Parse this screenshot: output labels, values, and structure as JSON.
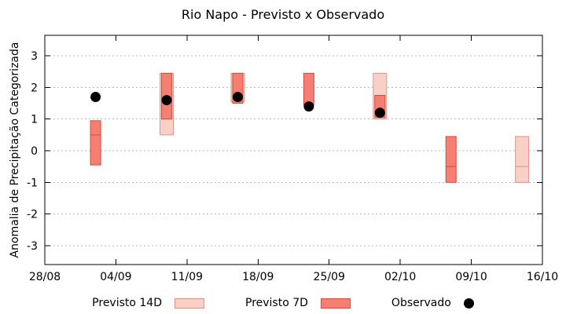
{
  "chart_data": {
    "type": "bar",
    "title": "Rio Napo - Previsto x Observado",
    "ylabel": "Anomalia de Precipitação Categorizada",
    "xlabel": "",
    "ylim": [
      -3,
      3
    ],
    "y_ticks": [
      -3,
      -2,
      -1,
      0,
      1,
      2,
      3
    ],
    "x_ticks": [
      {
        "day": 0,
        "label": "28/08"
      },
      {
        "day": 7,
        "label": "04/09"
      },
      {
        "day": 14,
        "label": "11/09"
      },
      {
        "day": 21,
        "label": "18/09"
      },
      {
        "day": 28,
        "label": "25/09"
      },
      {
        "day": 35,
        "label": "02/10"
      },
      {
        "day": 42,
        "label": "09/10"
      },
      {
        "day": 49,
        "label": "16/10"
      }
    ],
    "grid": "horizontal-dotted",
    "legend_position": "bottom-center",
    "series": [
      {
        "name": "Previsto 14D",
        "type": "range-bar",
        "color": "#f8d0c8",
        "border": "#e09288"
      },
      {
        "name": "Previsto 7D",
        "type": "range-bar",
        "color": "#f47f72",
        "border": "#d44a3c"
      },
      {
        "name": "Observado",
        "type": "scatter",
        "color": "#000000"
      }
    ],
    "points": [
      {
        "date": "02/09",
        "day": 5,
        "previsto_14d": null,
        "previsto_7d": {
          "lo": -0.45,
          "hi": 0.95,
          "div": 0.5
        },
        "observado": 1.7
      },
      {
        "date": "09/09",
        "day": 12,
        "previsto_14d": {
          "lo": 0.5,
          "hi": 2.45
        },
        "previsto_7d": {
          "lo": 1.0,
          "hi": 2.45
        },
        "observado": 1.6
      },
      {
        "date": "16/09",
        "day": 19,
        "previsto_14d": {
          "lo": 1.55,
          "hi": 2.45
        },
        "previsto_7d": {
          "lo": 1.5,
          "hi": 2.45
        },
        "observado": 1.7
      },
      {
        "date": "23/09",
        "day": 26,
        "previsto_14d": null,
        "previsto_7d": {
          "lo": 1.45,
          "hi": 2.45
        },
        "observado": 1.4
      },
      {
        "date": "30/09",
        "day": 33,
        "previsto_14d": {
          "lo": 1.0,
          "hi": 2.45
        },
        "previsto_7d": {
          "lo": 1.05,
          "hi": 1.75
        },
        "observado": 1.2
      },
      {
        "date": "07/10",
        "day": 40,
        "previsto_14d": null,
        "previsto_7d": {
          "lo": -1.0,
          "hi": 0.45,
          "div": -0.5
        },
        "observado": null
      },
      {
        "date": "14/10",
        "day": 47,
        "previsto_14d": {
          "lo": -1.0,
          "hi": 0.45,
          "div": -0.5
        },
        "previsto_7d": null,
        "observado": null
      }
    ],
    "legend": [
      {
        "label": "Previsto 14D"
      },
      {
        "label": "Previsto 7D"
      },
      {
        "label": "Observado"
      }
    ]
  }
}
